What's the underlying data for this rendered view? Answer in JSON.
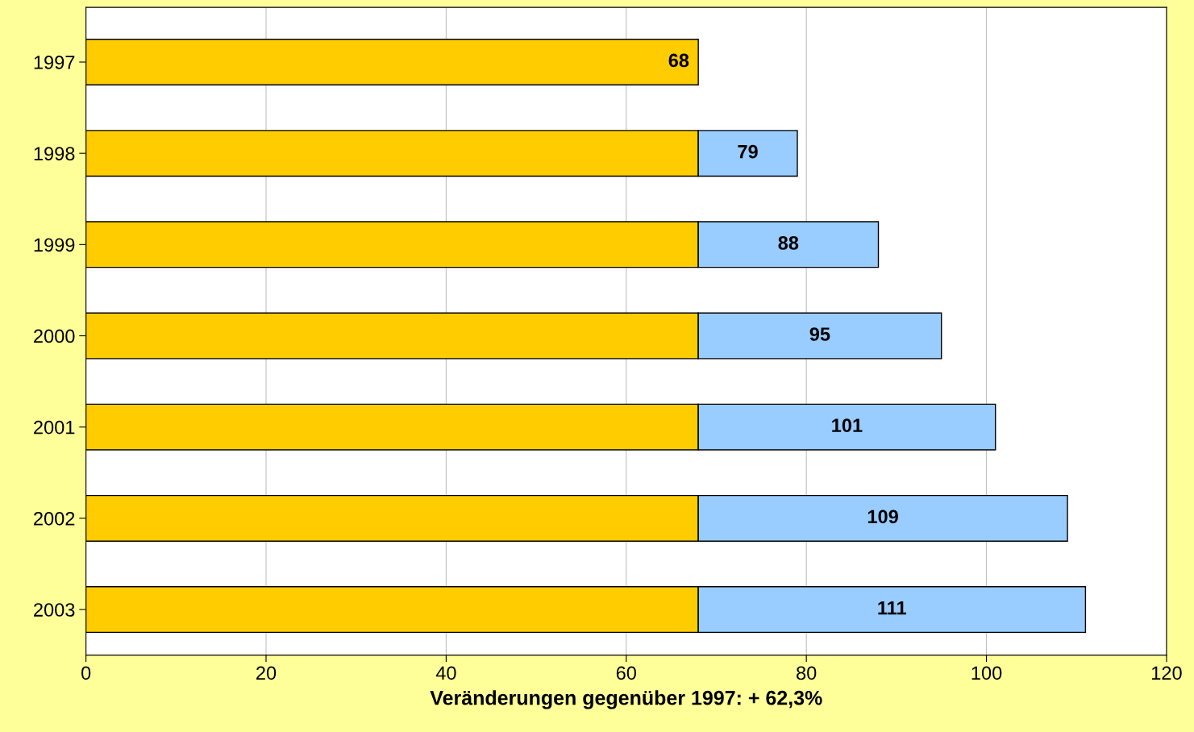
{
  "chart_data": {
    "type": "bar",
    "orientation": "horizontal",
    "stacked": true,
    "xlabel": "Veränderungen gegenüber 1997: + 62,3%",
    "categories": [
      "1997",
      "1998",
      "1999",
      "2000",
      "2001",
      "2002",
      "2003"
    ],
    "series": [
      {
        "color": "#ffcc00",
        "values": [
          68,
          68,
          68,
          68,
          68,
          68,
          68
        ]
      },
      {
        "color": "#99ccff",
        "values": [
          null,
          11,
          20,
          27,
          33,
          41,
          43
        ]
      }
    ],
    "totals": [
      "68",
      "79",
      "88",
      "95",
      "101",
      "109",
      "111"
    ],
    "xlim": [
      0,
      120
    ],
    "xticks": [
      0,
      20,
      40,
      60,
      80,
      100,
      120
    ],
    "grid": "x"
  }
}
